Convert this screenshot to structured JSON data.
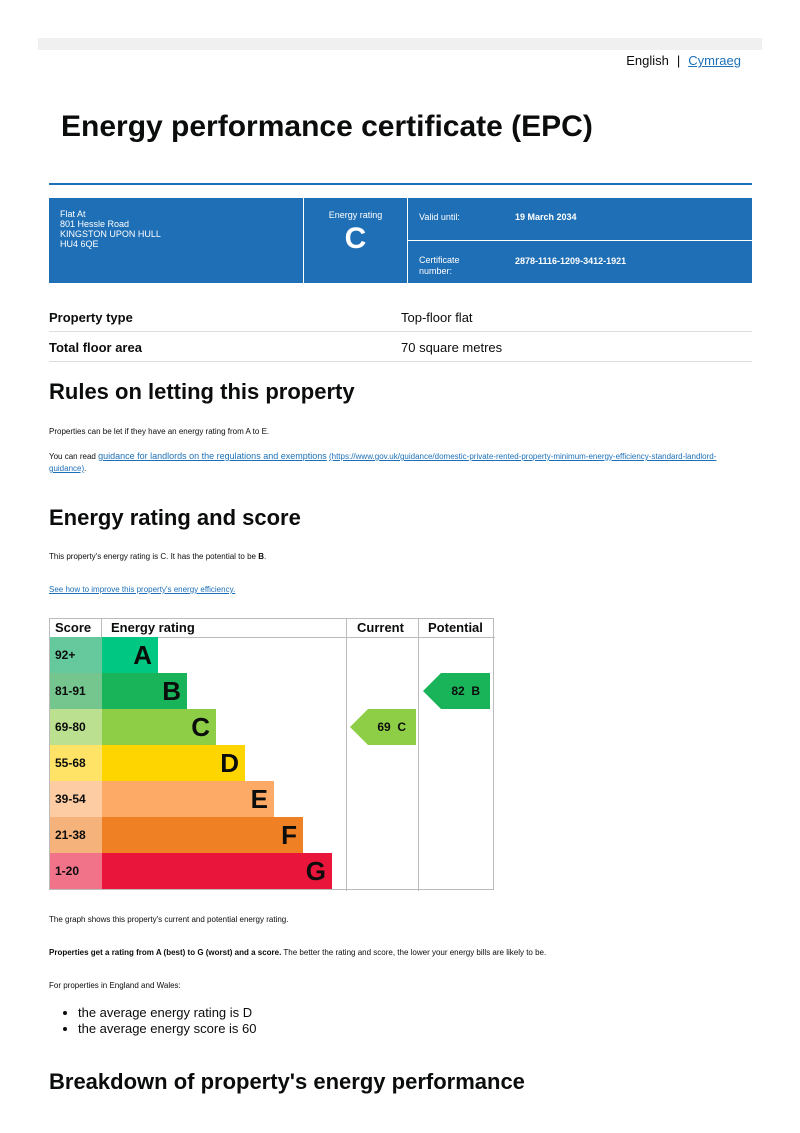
{
  "language": {
    "current": "English",
    "other": "Cymraeg"
  },
  "title": "Energy performance certificate (EPC)",
  "header": {
    "address": [
      "Flat At",
      "801 Hessle Road",
      "KINGSTON UPON HULL",
      "HU4 6QE"
    ],
    "energy_rating_label": "Energy rating",
    "energy_rating": "C",
    "valid_until_label": "Valid until:",
    "valid_until": "19 March 2034",
    "certificate_label": "Certificate number:",
    "certificate_number": "2878-1116-1209-3412-1921"
  },
  "property": [
    {
      "label": "Property type",
      "value": "Top-floor flat"
    },
    {
      "label": "Total floor area",
      "value": "70 square metres"
    }
  ],
  "rules": {
    "heading": "Rules on letting this property",
    "p1": "Properties can be let if they have an energy rating from A to E.",
    "p2_prefix": "You can read ",
    "p2_link": "guidance for landlords on the regulations and exemptions",
    "p2_url": "(https://www.gov.uk/guidance/domestic-private-rented-property-minimum-energy-efficiency-standard-landlord-guidance)",
    "p2_suffix": "."
  },
  "rating": {
    "heading": "Energy rating and score",
    "p1_prefix": "This property's energy rating is C. It has the potential to be ",
    "p1_bold": "B",
    "p1_suffix": ".",
    "link": "See how to improve this property's energy efficiency.",
    "graph_note": "The graph shows this property's current and potential energy rating.",
    "p2_bold": "Properties get a rating from A (best) to G (worst) and a score.",
    "p2_rest": " The better the rating and score, the lower your energy bills are likely to be.",
    "p3": "For properties in England and Wales:",
    "bullets": [
      "the average energy rating is D",
      "the average energy score is 60"
    ]
  },
  "chart_data": {
    "type": "bar",
    "headers": {
      "score": "Score",
      "rating": "Energy rating",
      "current": "Current",
      "potential": "Potential"
    },
    "bands": [
      {
        "score": "92+",
        "letter": "A",
        "color": "#00c781",
        "light": "#66c99d"
      },
      {
        "score": "81-91",
        "letter": "B",
        "color": "#19b459",
        "light": "#75c58f"
      },
      {
        "score": "69-80",
        "letter": "C",
        "color": "#8dce46",
        "light": "#bbe08f"
      },
      {
        "score": "55-68",
        "letter": "D",
        "color": "#ffd500",
        "light": "#ffe366"
      },
      {
        "score": "39-54",
        "letter": "E",
        "color": "#fcaa65",
        "light": "#fdcca3"
      },
      {
        "score": "21-38",
        "letter": "F",
        "color": "#ef8023",
        "light": "#f5b37b"
      },
      {
        "score": "1-20",
        "letter": "G",
        "color": "#e9153b",
        "light": "#f07389"
      }
    ],
    "current": {
      "score": 69,
      "letter": "C",
      "label": "69  C"
    },
    "potential": {
      "score": 82,
      "letter": "B",
      "label": "82  B"
    }
  },
  "next_heading": "Breakdown of property's energy performance"
}
